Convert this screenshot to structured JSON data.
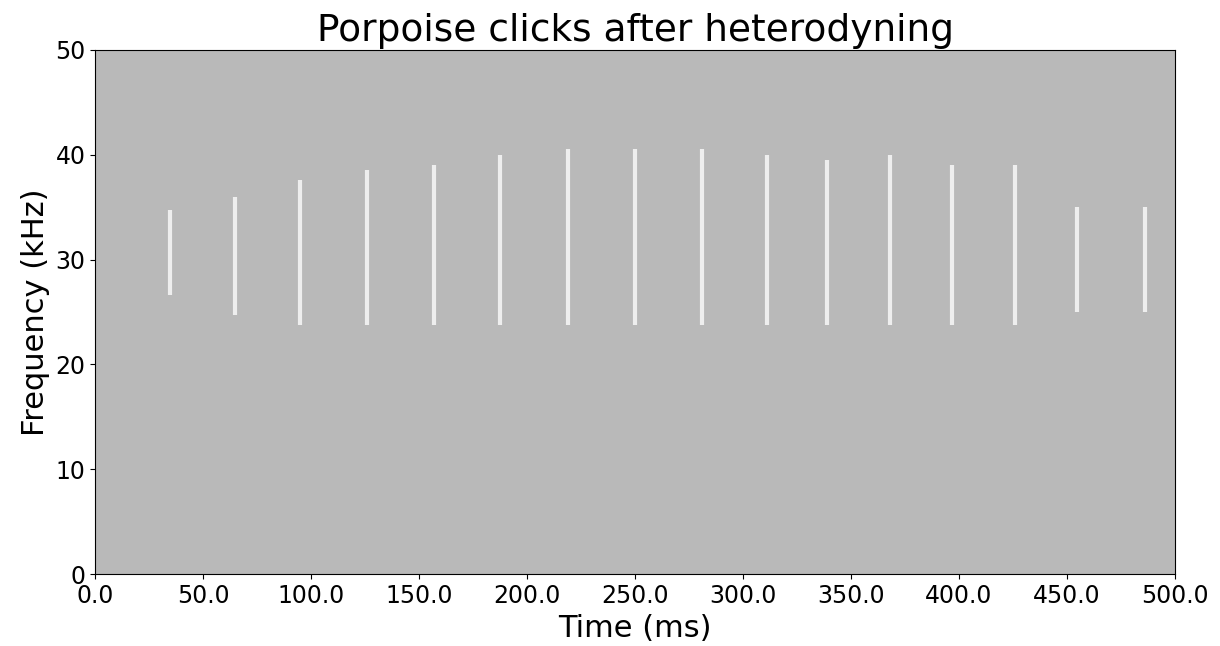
{
  "chart_data": {
    "type": "spectrogram",
    "title": "Porpoise clicks after heterodyning",
    "x_label": "Time (ms)",
    "y_label": "Frequency (kHz)",
    "x": [
      34.7,
      64.8,
      95,
      126,
      157,
      187.5,
      219,
      250,
      281,
      311,
      339,
      368,
      397,
      426,
      454.6,
      486
    ],
    "freq_low": [
      26.6,
      24.7,
      23.8,
      23.8,
      23.8,
      23.8,
      23.8,
      23.8,
      23.8,
      23.8,
      23.8,
      23.8,
      23.8,
      23.8,
      25,
      25
    ],
    "freq_high": [
      34.7,
      36,
      37.6,
      38.5,
      39,
      40,
      40.5,
      40.5,
      40.5,
      40,
      39.5,
      40,
      39,
      39,
      35,
      35
    ],
    "color": "#f4f4f4",
    "xlim": [
      0,
      500
    ],
    "xticks": [
      {
        "value": 0,
        "label": "0.0"
      },
      {
        "value": 50,
        "label": "50.0"
      },
      {
        "value": 100,
        "label": "100.0"
      },
      {
        "value": 150,
        "label": "150.0"
      },
      {
        "value": 200,
        "label": "200.0"
      },
      {
        "value": 250,
        "label": "250.0"
      },
      {
        "value": 300,
        "label": "300.0"
      },
      {
        "value": 350,
        "label": "350.0"
      },
      {
        "value": 400,
        "label": "400.0"
      },
      {
        "value": 450,
        "label": "450.0"
      },
      {
        "value": 500,
        "label": "500.0"
      }
    ],
    "ylim": [
      0,
      50
    ],
    "yticks": [
      0,
      10,
      20,
      30,
      40,
      50
    ]
  }
}
